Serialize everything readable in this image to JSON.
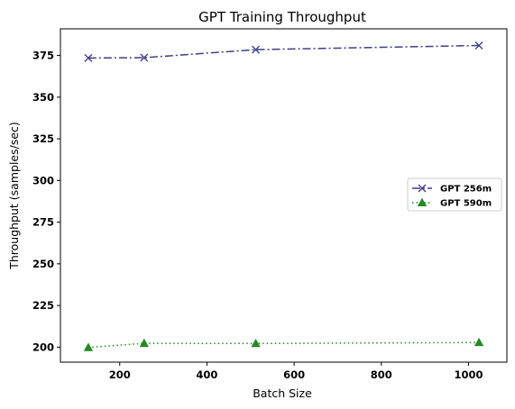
{
  "chart_data": {
    "type": "line",
    "title": "GPT Training Throughput",
    "xlabel": "Batch Size",
    "ylabel": "Throughput (samples/sec)",
    "xlim": [
      64,
      1088
    ],
    "ylim": [
      191,
      391
    ],
    "xticks": [
      200,
      400,
      600,
      800,
      1000
    ],
    "yticks": [
      200,
      225,
      250,
      275,
      300,
      325,
      350,
      375
    ],
    "grid": false,
    "legend_position": "center-right",
    "series": [
      {
        "name": "GPT 256m",
        "color": "#3f3f86",
        "marker": "x",
        "linestyle": "dashdot",
        "x": [
          128,
          256,
          512,
          1024
        ],
        "y": [
          373.5,
          373.7,
          378.5,
          381.0
        ]
      },
      {
        "name": "GPT 590m",
        "color": "#228b22",
        "marker": "triangle-up",
        "linestyle": "dotted",
        "x": [
          128,
          256,
          512,
          1024
        ],
        "y": [
          199.8,
          202.3,
          202.2,
          202.8
        ]
      }
    ]
  }
}
